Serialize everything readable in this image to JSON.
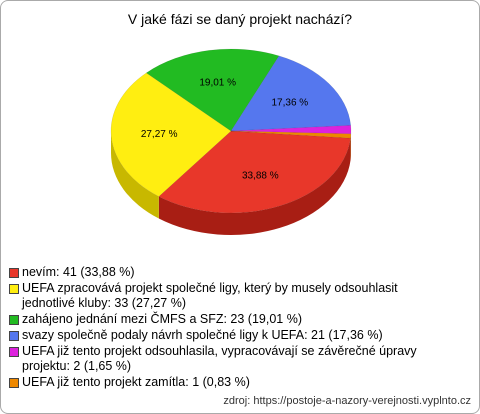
{
  "chart_data": {
    "type": "pie",
    "title": "V jaké fázi se daný projekt nachází?",
    "categories": [
      "nevím: 41 (33,88 %)",
      "UEFA zpracovává projekt společné ligy, který by musely odsouhlasit jednotlivé kluby: 33 (27,27 %)",
      "zahájeno jednání mezi ČMFS a SFZ: 23 (19,01 %)",
      "svazy společně podaly návrh společné ligy k UEFA: 21 (17,36 %)",
      "UEFA již tento projekt odsouhlasila, vypracovávají se závěrečné úpravy projektu: 2 (1,65 %)",
      "UEFA již tento projekt zamítla: 1 (0,83 %)"
    ],
    "values": [
      33.88,
      27.27,
      19.01,
      17.36,
      1.65,
      0.83
    ],
    "value_labels": [
      "33,88 %",
      "27,27 %",
      "19,01 %",
      "17,36 %",
      null,
      null
    ],
    "colors": [
      "#e8372a",
      "#ffee11",
      "#22bb22",
      "#5577ee",
      "#dd22dd",
      "#ee8800"
    ],
    "side_colors": [
      "#a81e14",
      "#c8b800",
      "#168a16",
      "#3550b0",
      "#a016a0",
      "#b06400"
    ],
    "source": "zdroj: https://postoje-a-nazory-verejnosti.vyplnto.cz"
  }
}
